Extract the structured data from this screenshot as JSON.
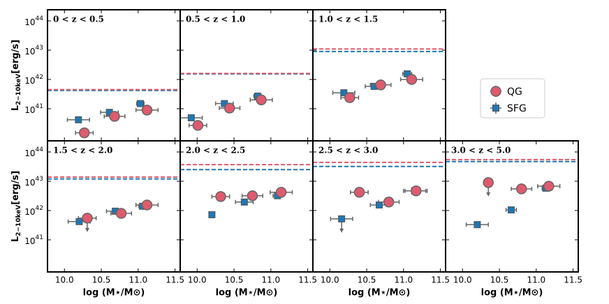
{
  "chart_data": [
    {
      "type": "scatter",
      "title": "0 < z < 0.5",
      "xlim": [
        9.77,
        11.57
      ],
      "ylim": [
        8e+39,
        2.4e+44
      ],
      "log_y": true,
      "xticks": [
        {
          "value": 10,
          "label": "10.0"
        },
        10.5,
        {
          "value": 11,
          "label": "11.0"
        },
        11.5
      ],
      "yticks": [
        {
          "value": 1e+41,
          "label": "10",
          "exponent": "41"
        },
        {
          "value": 1e+42,
          "label": "10",
          "exponent": "42"
        },
        {
          "value": 1e+43,
          "label": "10",
          "exponent": "43"
        },
        {
          "value": 1e+44,
          "label": "10",
          "exponent": "44"
        }
      ],
      "ylabel": {
        "main": "L",
        "sub": "2−10keV",
        "unit": "[erg/s]"
      },
      "series": [
        {
          "x": [
            10.19,
            10.61,
            11.03
          ],
          "values": [
            4.2e+40,
            7.5e+40,
            1.5e+41
          ],
          "xerr": [
            0.15,
            0.12,
            0.05
          ],
          "upper_limits": [
            false,
            false,
            false
          ],
          "limit": 4.2e+41
        },
        {
          "x": [
            10.27,
            10.68,
            11.12
          ],
          "values": [
            1.5e+40,
            5.5e+40,
            9e+40
          ],
          "xerr": [
            0.12,
            0.14,
            0.15
          ],
          "upper_limits": [
            false,
            false,
            false
          ],
          "limit": 4.5e+41
        }
      ]
    },
    {
      "type": "scatter",
      "title": "0.5 < z < 1.0",
      "xlim": [
        9.77,
        11.57
      ],
      "ylim": [
        8e+39,
        2.4e+44
      ],
      "log_y": true,
      "xticks": [
        {
          "value": 10,
          "label": "10.0"
        },
        10.5,
        {
          "value": 11,
          "label": "11.0"
        },
        11.5
      ],
      "yticks": [
        {
          "value": 1e+41,
          "label": "10",
          "exponent": "41"
        },
        {
          "value": 1e+42,
          "label": "10",
          "exponent": "42"
        },
        {
          "value": 1e+43,
          "label": "10",
          "exponent": "43"
        },
        {
          "value": 1e+44,
          "label": "10",
          "exponent": "44"
        }
      ],
      "series": [
        {
          "x": [
            9.92,
            10.37,
            10.82
          ],
          "values": [
            4.9e+40,
            1.5e+41,
            2.7e+41
          ],
          "xerr": [
            0.15,
            0.12,
            0.05
          ],
          "upper_limits": [
            false,
            false,
            false
          ],
          "limit": 1.55e+42
        },
        {
          "x": [
            10.01,
            10.44,
            10.87
          ],
          "values": [
            2.7e+40,
            1.05e+41,
            2e+41
          ],
          "xerr": [
            0.12,
            0.14,
            0.15
          ],
          "upper_limits": [
            false,
            false,
            false
          ],
          "limit": 1.6e+42
        }
      ]
    },
    {
      "type": "scatter",
      "title": "1.0 < z < 1.5",
      "xlim": [
        9.77,
        11.57
      ],
      "ylim": [
        8e+39,
        2.4e+44
      ],
      "log_y": true,
      "xticks": [
        {
          "value": 10,
          "label": "10.0"
        },
        10.5,
        {
          "value": 11,
          "label": "11.0"
        },
        11.5
      ],
      "yticks": [
        {
          "value": 1e+41,
          "label": "10",
          "exponent": "41"
        },
        {
          "value": 1e+42,
          "label": "10",
          "exponent": "42"
        },
        {
          "value": 1e+43,
          "label": "10",
          "exponent": "43"
        },
        {
          "value": 1e+44,
          "label": "10",
          "exponent": "44"
        }
      ],
      "series": [
        {
          "x": [
            10.19,
            10.6,
            11.05
          ],
          "values": [
            3.5e+41,
            5.8e+41,
            1.55e+42
          ],
          "xerr": [
            0.15,
            0.12,
            0.06
          ],
          "upper_limits": [
            false,
            false,
            false
          ],
          "limit": 9e+42
        },
        {
          "x": [
            10.27,
            10.69,
            11.11
          ],
          "values": [
            2.4e+41,
            6.5e+41,
            1e+42
          ],
          "xerr": [
            0.12,
            0.14,
            0.15
          ],
          "upper_limits": [
            false,
            false,
            false
          ],
          "limit": 1.1e+43
        }
      ]
    },
    {
      "type": "scatter",
      "title": "1.5 < z < 2.0",
      "xlim": [
        9.77,
        11.57
      ],
      "ylim": [
        8e+39,
        2.4e+44
      ],
      "log_y": true,
      "xticks": [
        {
          "value": 10,
          "label": "10.0"
        },
        10.5,
        {
          "value": 11,
          "label": "11.0"
        },
        11.5
      ],
      "yticks": [
        {
          "value": 1e+41,
          "label": "10",
          "exponent": "41"
        },
        {
          "value": 1e+42,
          "label": "10",
          "exponent": "42"
        },
        {
          "value": 1e+43,
          "label": "10",
          "exponent": "43"
        },
        {
          "value": 1e+44,
          "label": "10",
          "exponent": "44"
        }
      ],
      "xlabel": "log (M⋆/M⊙)",
      "ylabel": {
        "main": "L",
        "sub": "2−10keV",
        "unit": "[erg/s]"
      },
      "series": [
        {
          "x": [
            10.2,
            10.69,
            11.06
          ],
          "values": [
            4.2e+41,
            9.5e+41,
            1.4e+42
          ],
          "xerr": [
            0.15,
            0.12,
            0.05
          ],
          "upper_limits": [
            false,
            false,
            false
          ],
          "limit": 1.2e+43
        },
        {
          "x": [
            10.31,
            10.77,
            11.12
          ],
          "values": [
            5.5e+41,
            8e+41,
            1.55e+42
          ],
          "xerr": [
            0.12,
            0.14,
            0.15
          ],
          "upper_limits": [
            true,
            false,
            false
          ],
          "limit": 1.4e+43
        }
      ]
    },
    {
      "type": "scatter",
      "title": "2.0 < z < 2.5",
      "xlim": [
        9.77,
        11.57
      ],
      "ylim": [
        8e+39,
        2.4e+44
      ],
      "log_y": true,
      "xticks": [
        {
          "value": 10,
          "label": "10.0"
        },
        10.5,
        {
          "value": 11,
          "label": "11.0"
        },
        11.5
      ],
      "yticks": [
        {
          "value": 1e+41,
          "label": "10",
          "exponent": "41"
        },
        {
          "value": 1e+42,
          "label": "10",
          "exponent": "42"
        },
        {
          "value": 1e+43,
          "label": "10",
          "exponent": "43"
        },
        {
          "value": 1e+44,
          "label": "10",
          "exponent": "44"
        }
      ],
      "xlabel": "log (M⋆/M⊙)",
      "series": [
        {
          "x": [
            10.2,
            10.64,
            11.09
          ],
          "values": [
            7.2e+41,
            1.95e+42,
            3.2e+42
          ],
          "xerr": [
            0.0,
            0.12,
            0.06
          ],
          "upper_limits": [
            false,
            false,
            false
          ],
          "limit": 2.5e+43
        },
        {
          "x": [
            10.32,
            10.75,
            11.14
          ],
          "values": [
            3e+42,
            3.2e+42,
            4.2e+42
          ],
          "xerr": [
            0.12,
            0.14,
            0.15
          ],
          "upper_limits": [
            false,
            false,
            false
          ],
          "limit": 3.7e+43
        }
      ]
    },
    {
      "type": "scatter",
      "title": "2.5 < z < 3.0",
      "xlim": [
        9.77,
        11.57
      ],
      "ylim": [
        8e+39,
        2.4e+44
      ],
      "log_y": true,
      "xticks": [
        {
          "value": 10,
          "label": "10.0"
        },
        10.5,
        {
          "value": 11,
          "label": "11.0"
        },
        11.5
      ],
      "yticks": [
        {
          "value": 1e+41,
          "label": "10",
          "exponent": "41"
        },
        {
          "value": 1e+42,
          "label": "10",
          "exponent": "42"
        },
        {
          "value": 1e+43,
          "label": "10",
          "exponent": "43"
        },
        {
          "value": 1e+44,
          "label": "10",
          "exponent": "44"
        }
      ],
      "xlabel": "log (M⋆/M⊙)",
      "series": [
        {
          "x": [
            10.16,
            10.67,
            11.15
          ],
          "values": [
            5.2e+41,
            1.55e+42,
            4.7e+42
          ],
          "xerr": [
            0.15,
            0.12,
            0.15
          ],
          "upper_limits": [
            true,
            false,
            false
          ],
          "limit": 3.2e+43
        },
        {
          "x": [
            10.4,
            10.8,
            11.17
          ],
          "values": [
            4.2e+42,
            1.95e+42,
            4.7e+42
          ],
          "xerr": [
            0.12,
            0.14,
            0.15
          ],
          "upper_limits": [
            false,
            false,
            false
          ],
          "limit": 4.4e+43
        }
      ]
    },
    {
      "type": "scatter",
      "title": "3.0 < z < 5.0",
      "xlim": [
        9.77,
        11.57
      ],
      "ylim": [
        8e+39,
        2.4e+44
      ],
      "log_y": true,
      "xticks": [
        {
          "value": 10,
          "label": "10.0"
        },
        10.5,
        {
          "value": 11,
          "label": "11.0"
        },
        11.5
      ],
      "yticks": [
        {
          "value": 1e+41,
          "label": "10",
          "exponent": "41"
        },
        {
          "value": 1e+42,
          "label": "10",
          "exponent": "42"
        },
        {
          "value": 1e+43,
          "label": "10",
          "exponent": "43"
        },
        {
          "value": 1e+44,
          "label": "10",
          "exponent": "44"
        }
      ],
      "xlabel": "log (M⋆/M⊙)",
      "series": [
        {
          "x": [
            10.2,
            10.66,
            11.13
          ],
          "values": [
            3.3e+41,
            1.05e+42,
            5.8e+42
          ],
          "xerr": [
            0.15,
            0.07,
            0.05
          ],
          "upper_limits": [
            false,
            false,
            false
          ],
          "limit": 4.7e+43
        },
        {
          "x": [
            10.35,
            10.8,
            11.17
          ],
          "values": [
            9e+42,
            5.5e+42,
            6.8e+42
          ],
          "xerr": [
            0.0,
            0.14,
            0.15
          ],
          "upper_limits": [
            true,
            false,
            false
          ],
          "limit": 5.5e+43
        }
      ]
    }
  ],
  "legend": [
    {
      "name": "SFG",
      "color": "#1f77b4",
      "marker": "square"
    },
    {
      "name": "QG",
      "color": "#e05a6e",
      "marker": "circle"
    }
  ]
}
